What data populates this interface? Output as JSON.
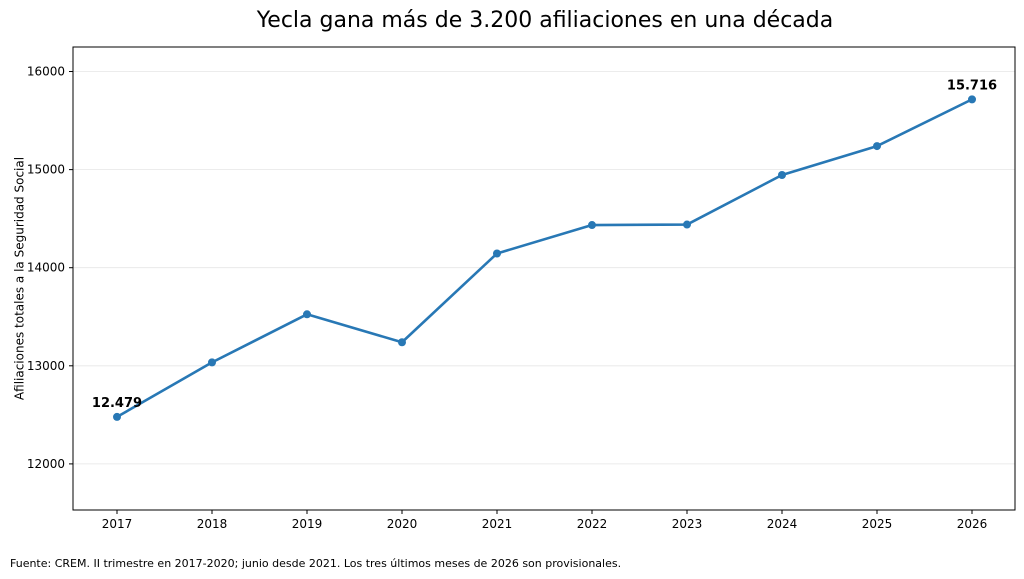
{
  "chart_data": {
    "type": "line",
    "title": "Yecla gana más de 3.200 afiliaciones en una década",
    "ylabel": "Afiliaciones totales a la Seguridad Social",
    "xlabel": "",
    "x": [
      "2017",
      "2018",
      "2019",
      "2020",
      "2021",
      "2022",
      "2023",
      "2024",
      "2025",
      "2026"
    ],
    "series": [
      {
        "values": [
          12479,
          13035,
          13525,
          13240,
          14145,
          14435,
          14440,
          14945,
          15240,
          15716
        ],
        "color": "#2878b5"
      }
    ],
    "ylim": [
      11530,
      16250
    ],
    "yticks": [
      12000,
      13000,
      14000,
      15000,
      16000
    ],
    "ytick_labels": [
      "12000",
      "13000",
      "14000",
      "15000",
      "16000"
    ],
    "grid": "horizontal",
    "annotations": [
      {
        "index": 0,
        "text": "12.479"
      },
      {
        "index": 9,
        "text": "15.716"
      }
    ]
  },
  "source_note": "Fuente: CREM. II trimestre en 2017-2020; junio desde 2021. Los tres últimos meses de 2026 son provisionales."
}
